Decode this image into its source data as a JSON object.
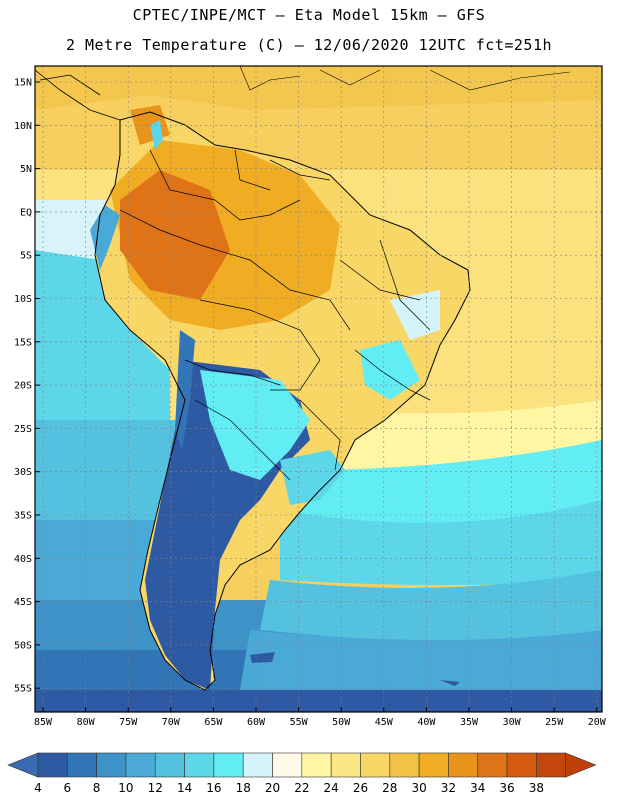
{
  "header": {
    "line1": "CPTEC/INPE/MCT –  Eta Model 15km – GFS",
    "line2": "2 Metre Temperature (C) – 12/06/2020 12UTC fct=251h"
  },
  "map": {
    "lat_labels": [
      "15N",
      "10N",
      "5N",
      "EQ",
      "5S",
      "10S",
      "15S",
      "20S",
      "25S",
      "30S",
      "35S",
      "40S",
      "45S",
      "50S",
      "55S"
    ],
    "lon_labels": [
      "85W",
      "80W",
      "75W",
      "70W",
      "65W",
      "60W",
      "55W",
      "50W",
      "45W",
      "40W",
      "35W",
      "30W",
      "25W",
      "20W"
    ]
  },
  "legend": {
    "values": [
      "4",
      "6",
      "8",
      "10",
      "12",
      "14",
      "16",
      "18",
      "20",
      "22",
      "24",
      "26",
      "28",
      "30",
      "32",
      "34",
      "36",
      "38"
    ],
    "colors": [
      "#2e5aa3",
      "#3275b6",
      "#3d92c8",
      "#4aa9d6",
      "#54c1df",
      "#5cd6e8",
      "#62ecf3",
      "#d4f4fa",
      "#fff9e8",
      "#fff6a3",
      "#fce786",
      "#f8d766",
      "#f2c244",
      "#f0ad24",
      "#e8941c",
      "#df7318",
      "#d45a12",
      "#c3460c"
    ],
    "under_color": "#3a6ab0",
    "over_color": "#c0400c"
  }
}
